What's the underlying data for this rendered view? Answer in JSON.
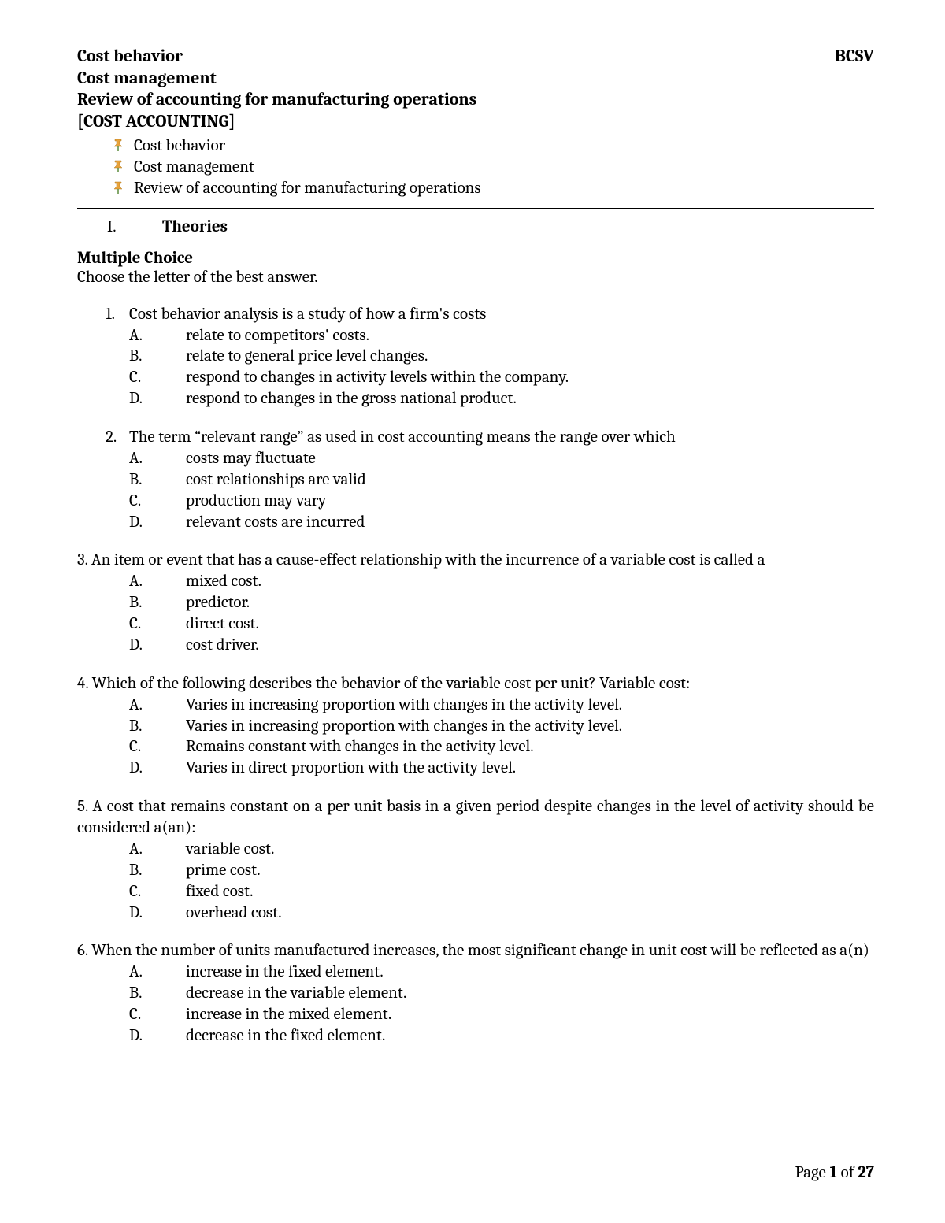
{
  "header": {
    "line1": "Cost behavior",
    "code": "BCSV",
    "line2": "Cost management",
    "line3": "Review of accounting for manufacturing operations",
    "line4": "[COST ACCOUNTING]"
  },
  "bullets": [
    "Cost behavior",
    "Cost management",
    "Review of accounting for manufacturing operations"
  ],
  "section": {
    "roman": "I.",
    "title": "Theories"
  },
  "mc": {
    "heading": "Multiple Choice",
    "instruction": "Choose the letter of the best answer."
  },
  "questions": [
    {
      "num": "1.",
      "indent": true,
      "text": "Cost behavior analysis is a study of how a firm's costs",
      "opts": [
        {
          "l": "A.",
          "t": "relate to competitors' costs."
        },
        {
          "l": "B.",
          "t": "relate to general price level changes."
        },
        {
          "l": "C.",
          "t": "respond to changes in activity levels within the company."
        },
        {
          "l": "D.",
          "t": "respond to changes in the gross national product."
        }
      ]
    },
    {
      "num": "2.",
      "indent": true,
      "text": "The term “relevant range” as used in cost accounting means the range over which",
      "opts": [
        {
          "l": "A.",
          "t": "costs may fluctuate"
        },
        {
          "l": "B.",
          "t": "cost relationships are valid"
        },
        {
          "l": "C.",
          "t": "production may vary"
        },
        {
          "l": "D.",
          "t": "relevant costs are incurred"
        }
      ]
    },
    {
      "num": "3.",
      "indent": false,
      "text": "An item or event that has a cause-effect relationship with the incurrence of a variable cost is called a",
      "opts": [
        {
          "l": "A.",
          "t": "mixed cost."
        },
        {
          "l": "B.",
          "t": "predictor."
        },
        {
          "l": "C.",
          "t": "direct cost."
        },
        {
          "l": "D.",
          "t": "cost driver."
        }
      ]
    },
    {
      "num": "4.",
      "indent": false,
      "text": "Which of the following describes the behavior of the variable cost per unit? Variable cost:",
      "opts": [
        {
          "l": "A.",
          "t": "Varies in increasing proportion with changes in the activity level."
        },
        {
          "l": "B.",
          "t": "Varies in increasing proportion with changes in the activity level."
        },
        {
          "l": "C.",
          "t": "Remains constant with changes in the activity level."
        },
        {
          "l": "D.",
          "t": "Varies in direct proportion with the activity level."
        }
      ]
    },
    {
      "num": "5.",
      "indent": false,
      "justify": true,
      "text": "A cost that remains constant on a per unit basis in a given period despite changes in the level of activity should be considered a(an):",
      "opts": [
        {
          "l": "A.",
          "t": "variable cost."
        },
        {
          "l": "B.",
          "t": "prime cost."
        },
        {
          "l": "C.",
          "t": "fixed cost."
        },
        {
          "l": "D.",
          "t": "overhead cost."
        }
      ]
    },
    {
      "num": "6.",
      "indent": false,
      "justify": true,
      "text": "When the number of units manufactured increases, the most significant change in unit cost will be reflected as a(n)",
      "opts": [
        {
          "l": "A.",
          "t": " increase in the fixed element."
        },
        {
          "l": "B.",
          "t": "decrease in the variable element."
        },
        {
          "l": "C.",
          "t": " increase in the mixed element."
        },
        {
          "l": "D.",
          "t": " decrease in the fixed element."
        }
      ]
    }
  ],
  "footer": {
    "prefix": "Page ",
    "current": "1",
    "middle": " of ",
    "total": "27"
  },
  "colors": {
    "bullet_fill": "#e8a23a",
    "bullet_stem": "#5b8a3a",
    "text": "#000000",
    "background": "#ffffff"
  }
}
